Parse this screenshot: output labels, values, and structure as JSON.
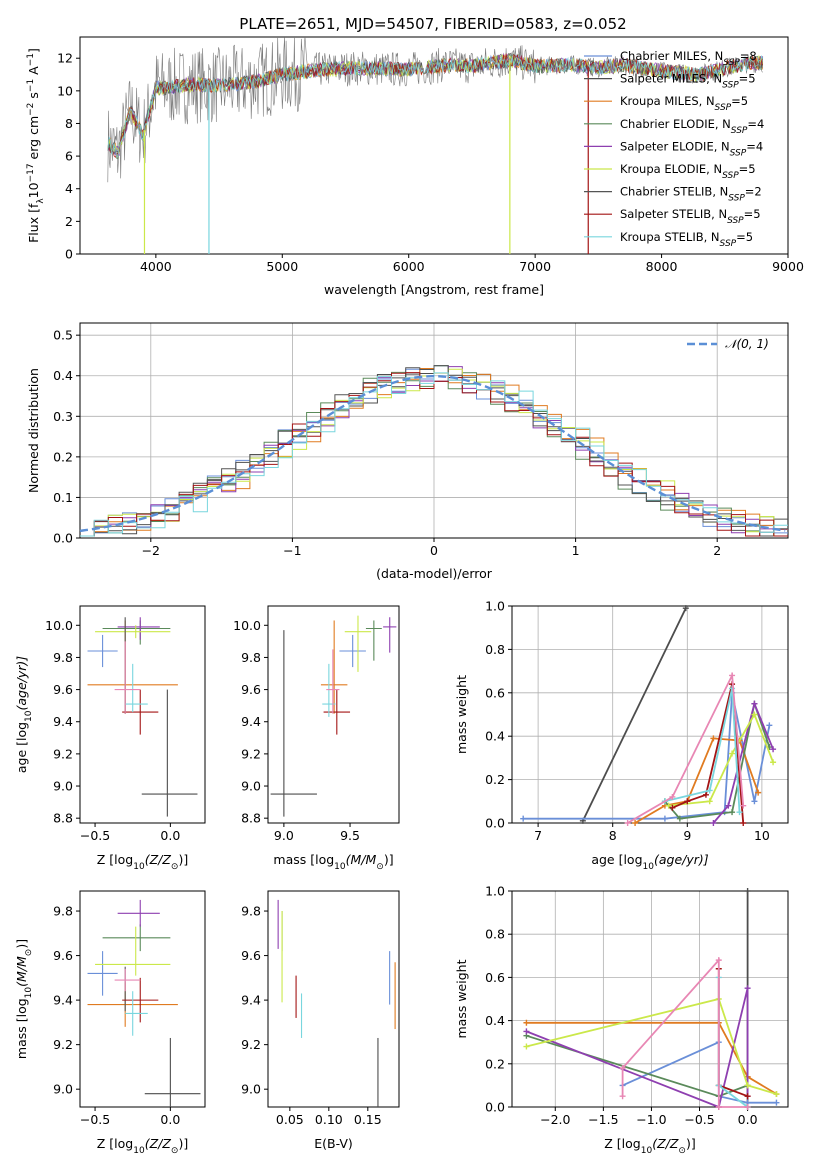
{
  "figure": {
    "title": "PLATE=2651, MJD=54507, FIBERID=0583, z=0.052"
  },
  "colors": {
    "Chabrier MILES": "#6a8fd8",
    "Salpeter MILES": "#4d4d4d",
    "Kroupa MILES": "#e07b20",
    "Chabrier ELODIE": "#5a8a5a",
    "Salpeter ELODIE": "#8e3fb0",
    "Kroupa ELODIE": "#cbe84a",
    "Chabrier STELIB": "#555555",
    "Salpeter STELIB": "#a31414",
    "Kroupa STELIB": "#79d6de",
    "pink": "#e887b4",
    "gaussian": "#5b8fd6"
  },
  "chart_data": [
    {
      "id": "spectrum",
      "type": "line",
      "title": "PLATE=2651, MJD=54507, FIBERID=0583, z=0.052",
      "xlabel": "wavelength [Angstrom, rest frame]",
      "ylabel": "Flux [f",
      "ylabel_parts": [
        "Flux [f",
        "λ",
        "10",
        "−17",
        " erg cm",
        "−2",
        " s",
        "−1",
        " A",
        "−1",
        "]"
      ],
      "xlim": [
        3400,
        9000
      ],
      "ylim": [
        0,
        13.3
      ],
      "xticks": [
        4000,
        5000,
        6000,
        7000,
        8000,
        9000
      ],
      "yticks": [
        0,
        2,
        4,
        6,
        8,
        10,
        12
      ],
      "legend_position": "top-right",
      "legend": [
        {
          "name": "Chabrier MILES",
          "nssp": "8"
        },
        {
          "name": "Salpeter MILES",
          "nssp": "5"
        },
        {
          "name": "Kroupa MILES",
          "nssp": "5"
        },
        {
          "name": "Chabrier ELODIE",
          "nssp": "4"
        },
        {
          "name": "Salpeter ELODIE",
          "nssp": "4"
        },
        {
          "name": "Kroupa ELODIE",
          "nssp": "5"
        },
        {
          "name": "Chabrier STELIB",
          "nssp": "2"
        },
        {
          "name": "Salpeter STELIB",
          "nssp": "5"
        },
        {
          "name": "Kroupa STELIB",
          "nssp": "5"
        }
      ],
      "legend_label_prefix": "N",
      "legend_label_sub": "SSP",
      "continuum": {
        "x": [
          3620,
          3700,
          3800,
          3900,
          4000,
          4100,
          4300,
          4500,
          4800,
          5000,
          5300,
          5600,
          6000,
          6300,
          6500,
          6800,
          7000,
          7300,
          7500,
          7700,
          8000,
          8300,
          8500,
          8700,
          8800
        ],
        "y": [
          6.8,
          6.2,
          8.8,
          7.3,
          10.2,
          10.2,
          10.4,
          10.3,
          10.6,
          11.0,
          11.3,
          11.4,
          11.3,
          11.6,
          11.5,
          11.9,
          11.5,
          11.6,
          11.4,
          11.6,
          11.2,
          11.0,
          11.4,
          11.7,
          11.7
        ]
      },
      "dropouts": [
        {
          "x": 3910,
          "ymin": 0,
          "series": "Kroupa ELODIE"
        },
        {
          "x": 4420,
          "ymin": 0,
          "series": "Kroupa STELIB"
        },
        {
          "x": 6800,
          "ymin": 0,
          "series": "Kroupa ELODIE"
        },
        {
          "x": 7420,
          "ymin": 0,
          "series": "Salpeter STELIB"
        }
      ]
    },
    {
      "id": "residuals",
      "type": "step",
      "xlabel": "(data-model)/error",
      "ylabel": "Normed distribution",
      "xlim": [
        -2.5,
        2.5
      ],
      "ylim": [
        0,
        0.53
      ],
      "xticks": [
        -2,
        -1,
        0,
        1,
        2
      ],
      "yticks": [
        0.0,
        0.1,
        0.2,
        0.3,
        0.4,
        0.5
      ],
      "grid": true,
      "legend_position": "top-right",
      "legend": [
        {
          "name": "𝒩(0, 1)"
        }
      ],
      "bin_width": 0.1,
      "reference_curve": "normal(0,1)"
    },
    {
      "id": "age_vs_Z",
      "type": "errorbar",
      "xlabel": "Z [log",
      "xlabel_parts": [
        "Z [log",
        "10",
        "(Z/Z",
        "⊙",
        ")]"
      ],
      "ylabel_parts": [
        "age  [log",
        "10",
        "(age/yr)]"
      ],
      "xlim": [
        -0.6,
        0.23
      ],
      "ylim": [
        8.77,
        10.12
      ],
      "xticks": [
        -0.5,
        0.0
      ],
      "yticks": [
        8.8,
        9.0,
        9.2,
        9.4,
        9.6,
        9.8,
        10.0
      ],
      "points": [
        {
          "series": "Chabrier MILES",
          "x": -0.45,
          "xerr": [
            0.1,
            0.1
          ],
          "y": 9.84,
          "yerr": [
            0.1,
            0.1
          ]
        },
        {
          "series": "Salpeter MILES",
          "x": -0.02,
          "xerr": [
            0.17,
            0.2
          ],
          "y": 8.95,
          "yerr": [
            0.14,
            0.65
          ]
        },
        {
          "series": "Kroupa MILES",
          "x": -0.3,
          "xerr": [
            0.25,
            0.35
          ],
          "y": 9.63,
          "yerr": [
            0.18,
            0.4
          ]
        },
        {
          "series": "Chabrier ELODIE",
          "x": -0.2,
          "xerr": [
            0.25,
            0.2
          ],
          "y": 9.98,
          "yerr": [
            0.1,
            0.05
          ]
        },
        {
          "series": "Salpeter ELODIE",
          "x": -0.2,
          "xerr": [
            0.15,
            0.13
          ],
          "y": 9.99,
          "yerr": [
            0.08,
            0.06
          ]
        },
        {
          "series": "Kroupa ELODIE",
          "x": -0.23,
          "xerr": [
            0.27,
            0.23
          ],
          "y": 9.96,
          "yerr": [
            0.04,
            0.04
          ]
        },
        {
          "series": "Chabrier STELIB",
          "x": -0.3,
          "xerr": [
            0.0,
            0.0
          ],
          "y": 9.75,
          "yerr": [
            0.3,
            0.3
          ]
        },
        {
          "series": "Salpeter STELIB",
          "x": -0.2,
          "xerr": [
            0.12,
            0.12
          ],
          "y": 9.46,
          "yerr": [
            0.14,
            0.14
          ]
        },
        {
          "series": "Kroupa STELIB",
          "x": -0.25,
          "xerr": [
            0.05,
            0.1
          ],
          "y": 9.51,
          "yerr": [
            0.05,
            0.25
          ]
        },
        {
          "series": "pink",
          "x": -0.3,
          "xerr": [
            0.07,
            0.1
          ],
          "y": 9.6,
          "yerr": [
            0.15,
            0.3
          ]
        }
      ]
    },
    {
      "id": "age_vs_mass",
      "type": "errorbar",
      "xlabel_parts": [
        "mass [log",
        "10",
        "(M/M",
        "⊙",
        ")]"
      ],
      "xlim": [
        8.88,
        9.87
      ],
      "ylim": [
        8.77,
        10.12
      ],
      "xticks": [
        9.0,
        9.5
      ],
      "yticks": [
        8.8,
        9.0,
        9.2,
        9.4,
        9.6,
        9.8,
        10.0
      ],
      "points": [
        {
          "series": "Chabrier MILES",
          "x": 9.52,
          "xerr": [
            0.1,
            0.1
          ],
          "y": 9.84,
          "yerr": [
            0.1,
            0.1
          ]
        },
        {
          "series": "Salpeter MILES",
          "x": 9.0,
          "xerr": [
            0.1,
            0.25
          ],
          "y": 8.95,
          "yerr": [
            0.14,
            1.02
          ]
        },
        {
          "series": "Kroupa MILES",
          "x": 9.38,
          "xerr": [
            0.1,
            0.1
          ],
          "y": 9.63,
          "yerr": [
            0.18,
            0.4
          ]
        },
        {
          "series": "Chabrier ELODIE",
          "x": 9.68,
          "xerr": [
            0.06,
            0.06
          ],
          "y": 9.98,
          "yerr": [
            0.2,
            0.05
          ]
        },
        {
          "series": "Salpeter ELODIE",
          "x": 9.8,
          "xerr": [
            0.05,
            0.05
          ],
          "y": 9.99,
          "yerr": [
            0.16,
            0.06
          ]
        },
        {
          "series": "Kroupa ELODIE",
          "x": 9.56,
          "xerr": [
            0.1,
            0.1
          ],
          "y": 9.96,
          "yerr": [
            0.25,
            0.1
          ]
        },
        {
          "series": "Salpeter STELIB",
          "x": 9.4,
          "xerr": [
            0.1,
            0.1
          ],
          "y": 9.46,
          "yerr": [
            0.14,
            0.14
          ]
        },
        {
          "series": "Kroupa STELIB",
          "x": 9.34,
          "xerr": [
            0.05,
            0.05
          ],
          "y": 9.51,
          "yerr": [
            0.08,
            0.25
          ]
        },
        {
          "series": "pink",
          "x": 9.37,
          "xerr": [
            0.05,
            0.05
          ],
          "y": 9.6,
          "yerr": [
            0.15,
            0.25
          ]
        }
      ]
    },
    {
      "id": "massweight_vs_age",
      "type": "line",
      "xlabel_parts": [
        "age  [log",
        "10",
        "(age/yr)]"
      ],
      "ylabel": "mass weight",
      "xlim": [
        6.65,
        10.35
      ],
      "ylim": [
        0,
        1.0
      ],
      "xticks": [
        7,
        8,
        9,
        10
      ],
      "yticks": [
        0.0,
        0.2,
        0.4,
        0.6,
        0.8,
        1.0
      ],
      "grid": true,
      "series": [
        {
          "name": "Salpeter MILES",
          "x": [
            7.6,
            8.98
          ],
          "y": [
            0.01,
            0.99
          ]
        },
        {
          "name": "Chabrier MILES",
          "x": [
            6.8,
            8.7,
            9.5,
            9.6,
            9.9,
            10.1
          ],
          "y": [
            0.02,
            0.02,
            0.05,
            0.6,
            0.1,
            0.45
          ]
        },
        {
          "name": "Kroupa MILES",
          "x": [
            8.3,
            8.7,
            9.0,
            9.35,
            9.7,
            9.95
          ],
          "y": [
            0.0,
            0.08,
            0.1,
            0.39,
            0.38,
            0.14
          ]
        },
        {
          "name": "Chabrier ELODIE",
          "x": [
            8.7,
            8.9,
            9.6,
            9.9,
            10.1
          ],
          "y": [
            0.1,
            0.02,
            0.05,
            0.55,
            0.35
          ]
        },
        {
          "name": "Salpeter ELODIE",
          "x": [
            9.35,
            9.55,
            9.9,
            10.15
          ],
          "y": [
            0.0,
            0.08,
            0.55,
            0.34
          ]
        },
        {
          "name": "Kroupa ELODIE",
          "x": [
            8.75,
            9.3,
            9.6,
            9.9,
            10.15
          ],
          "y": [
            0.08,
            0.1,
            0.32,
            0.5,
            0.28
          ]
        },
        {
          "name": "Salpeter STELIB",
          "x": [
            8.8,
            9.0,
            9.25,
            9.6,
            9.75
          ],
          "y": [
            0.07,
            0.1,
            0.13,
            0.64,
            0.0
          ]
        },
        {
          "name": "Kroupa STELIB",
          "x": [
            8.7,
            9.3,
            9.6,
            9.7
          ],
          "y": [
            0.1,
            0.15,
            0.62,
            0.05
          ]
        },
        {
          "name": "pink",
          "x": [
            8.2,
            8.8,
            9.6,
            9.75
          ],
          "y": [
            0.0,
            0.12,
            0.68,
            0.08
          ]
        }
      ]
    },
    {
      "id": "mass_vs_Z",
      "type": "errorbar",
      "xlabel_parts": [
        "Z [log",
        "10",
        "(Z/Z",
        "⊙",
        ")]"
      ],
      "ylabel_parts": [
        "mass [log",
        "10",
        "(M/M",
        "⊙",
        ")]"
      ],
      "xlim": [
        -0.6,
        0.23
      ],
      "ylim": [
        8.92,
        9.89
      ],
      "xticks": [
        -0.5,
        0.0
      ],
      "yticks": [
        9.0,
        9.2,
        9.4,
        9.6,
        9.8
      ],
      "points": [
        {
          "series": "Chabrier MILES",
          "x": -0.45,
          "xerr": [
            0.1,
            0.1
          ],
          "y": 9.52,
          "yerr": [
            0.1,
            0.1
          ]
        },
        {
          "series": "Salpeter MILES",
          "x": 0.0,
          "xerr": [
            0.17,
            0.2
          ],
          "y": 8.98,
          "yerr": [
            0.06,
            0.25
          ]
        },
        {
          "series": "Kroupa MILES",
          "x": -0.3,
          "xerr": [
            0.25,
            0.35
          ],
          "y": 9.38,
          "yerr": [
            0.1,
            0.1
          ]
        },
        {
          "series": "Chabrier ELODIE",
          "x": -0.2,
          "xerr": [
            0.25,
            0.2
          ],
          "y": 9.68,
          "yerr": [
            0.06,
            0.06
          ]
        },
        {
          "series": "Salpeter ELODIE",
          "x": -0.2,
          "xerr": [
            0.15,
            0.13
          ],
          "y": 9.79,
          "yerr": [
            0.06,
            0.06
          ]
        },
        {
          "series": "Kroupa ELODIE",
          "x": -0.23,
          "xerr": [
            0.27,
            0.23
          ],
          "y": 9.56,
          "yerr": [
            0.05,
            0.17
          ]
        },
        {
          "series": "Chabrier STELIB",
          "x": -0.3,
          "xerr": [
            0.0,
            0.0
          ],
          "y": 9.45,
          "yerr": [
            0.1,
            0.1
          ]
        },
        {
          "series": "Salpeter STELIB",
          "x": -0.2,
          "xerr": [
            0.12,
            0.12
          ],
          "y": 9.4,
          "yerr": [
            0.1,
            0.1
          ]
        },
        {
          "series": "Kroupa STELIB",
          "x": -0.25,
          "xerr": [
            0.05,
            0.1
          ],
          "y": 9.34,
          "yerr": [
            0.1,
            0.1
          ]
        },
        {
          "series": "pink",
          "x": -0.3,
          "xerr": [
            0.07,
            0.1
          ],
          "y": 9.49,
          "yerr": [
            0.05,
            0.05
          ]
        }
      ]
    },
    {
      "id": "mass_vs_EBV",
      "type": "errorbar",
      "xlabel": "E(B-V)",
      "xlim": [
        0.022,
        0.19
      ],
      "ylim": [
        8.92,
        9.89
      ],
      "xticks": [
        0.05,
        0.1,
        0.15
      ],
      "xtick_labels": [
        "0.05",
        "0.10",
        "0.15"
      ],
      "yticks": [
        9.0,
        9.2,
        9.4,
        9.6,
        9.8
      ],
      "points": [
        {
          "series": "Chabrier MILES",
          "x": 0.178,
          "y": 9.5,
          "yerr": [
            0.12,
            0.12
          ]
        },
        {
          "series": "Salpeter MILES",
          "x": 0.163,
          "y": 9.08,
          "yerr": [
            0.16,
            0.15
          ]
        },
        {
          "series": "Kroupa MILES",
          "x": 0.185,
          "y": 9.42,
          "yerr": [
            0.15,
            0.15
          ]
        },
        {
          "series": "Chabrier ELODIE",
          "x": 0.04,
          "y": 9.7,
          "yerr": [
            0.08,
            0.1
          ]
        },
        {
          "series": "Salpeter ELODIE",
          "x": 0.035,
          "y": 9.73,
          "yerr": [
            0.1,
            0.12
          ]
        },
        {
          "series": "Kroupa ELODIE",
          "x": 0.04,
          "y": 9.55,
          "yerr": [
            0.16,
            0.25
          ]
        },
        {
          "series": "Salpeter STELIB",
          "x": 0.058,
          "y": 9.42,
          "yerr": [
            0.1,
            0.09
          ]
        },
        {
          "series": "Kroupa STELIB",
          "x": 0.065,
          "y": 9.33,
          "yerr": [
            0.1,
            0.1
          ]
        }
      ]
    },
    {
      "id": "massweight_vs_Z",
      "type": "line",
      "xlabel_parts": [
        "Z [log",
        "10",
        "(Z/Z",
        "⊙",
        ")]"
      ],
      "ylabel": "mass weight",
      "xlim": [
        -2.45,
        0.42
      ],
      "ylim": [
        0,
        1.0
      ],
      "xticks": [
        -2.0,
        -1.5,
        -1.0,
        -0.5,
        0.0
      ],
      "xtick_labels": [
        "−2.0",
        "−1.5",
        "−1.0",
        "−0.5",
        "0.0"
      ],
      "yticks": [
        0.0,
        0.2,
        0.4,
        0.6,
        0.8,
        1.0
      ],
      "grid": true,
      "series": [
        {
          "name": "Salpeter MILES",
          "x": [
            0.0,
            0.0
          ],
          "y": [
            0.0,
            1.0
          ]
        },
        {
          "name": "Kroupa MILES",
          "x": [
            -2.3,
            -0.3,
            0.0,
            0.3
          ],
          "y": [
            0.39,
            0.39,
            0.14,
            0.06
          ]
        },
        {
          "name": "Chabrier MILES",
          "x": [
            -1.3,
            -0.3,
            -0.3,
            0.0,
            0.3
          ],
          "y": [
            0.1,
            0.3,
            0.05,
            0.02,
            0.02
          ]
        },
        {
          "name": "Chabrier ELODIE",
          "x": [
            -2.3,
            -0.3,
            0.0
          ],
          "y": [
            0.33,
            0.05,
            0.1
          ]
        },
        {
          "name": "Salpeter ELODIE",
          "x": [
            -2.3,
            -0.3,
            -0.3,
            0.0,
            0.0
          ],
          "y": [
            0.35,
            0.0,
            0.0,
            0.55,
            0.05
          ]
        },
        {
          "name": "Kroupa ELODIE",
          "x": [
            -2.3,
            -0.3,
            0.0,
            0.3
          ],
          "y": [
            0.28,
            0.5,
            0.1,
            0.06
          ]
        },
        {
          "name": "Salpeter STELIB",
          "x": [
            -0.3,
            -0.3,
            0.0
          ],
          "y": [
            0.64,
            0.1,
            0.05
          ]
        },
        {
          "name": "Kroupa STELIB",
          "x": [
            -0.3,
            -0.3,
            0.0
          ],
          "y": [
            0.6,
            0.1,
            0.0
          ]
        },
        {
          "name": "pink",
          "x": [
            -1.3,
            -1.3,
            -0.3,
            -0.3,
            0.0
          ],
          "y": [
            0.05,
            0.18,
            0.68,
            0.0,
            0.0
          ]
        }
      ]
    }
  ]
}
